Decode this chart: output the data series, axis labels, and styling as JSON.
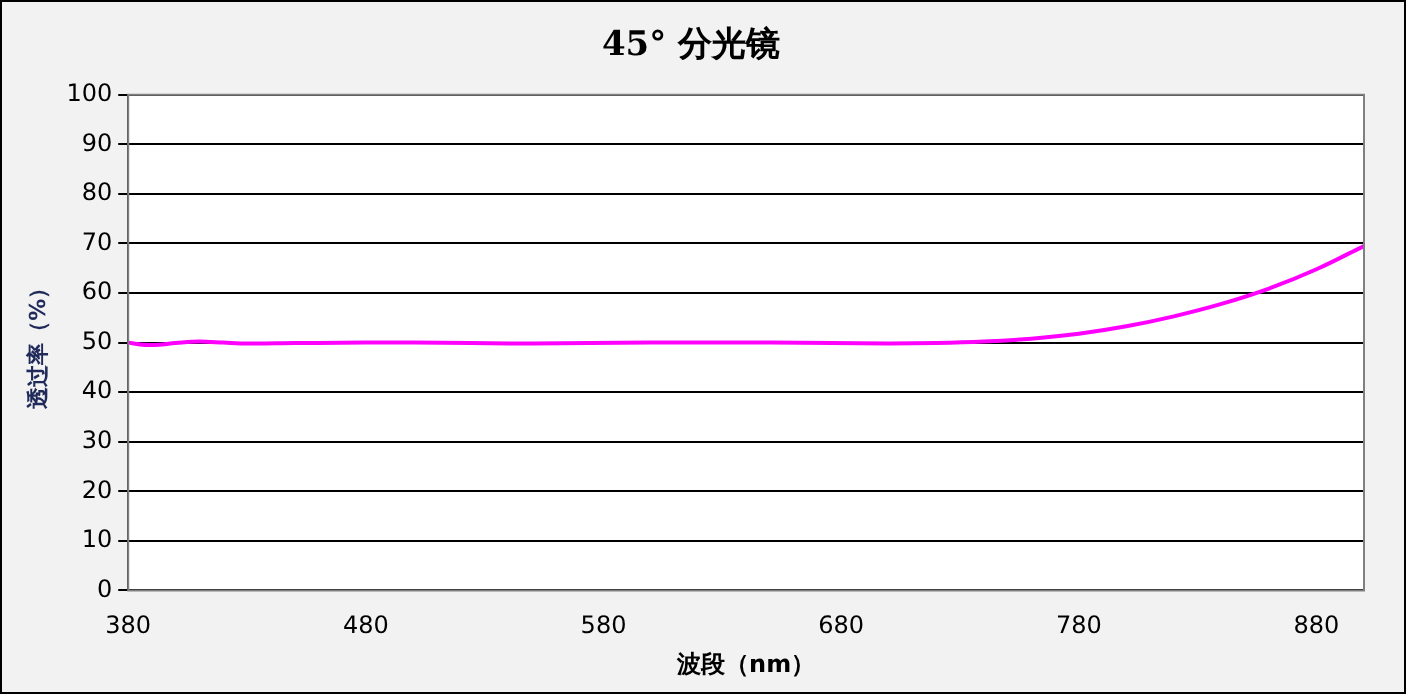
{
  "chart_data": {
    "type": "line",
    "title": "45° 分光镜",
    "xlabel": "波段（nm）",
    "ylabel": "透过率（%）",
    "x": [
      380,
      385,
      390,
      400,
      410,
      420,
      430,
      450,
      480,
      500,
      550,
      600,
      650,
      700,
      720,
      740,
      760,
      780,
      800,
      820,
      840,
      860,
      880,
      900
    ],
    "series": [
      {
        "color": "#ff00ff",
        "values": [
          50,
          49.6,
          49.5,
          49.9,
          50.2,
          50,
          49.8,
          49.9,
          50,
          50,
          49.8,
          50,
          50,
          49.8,
          49.9,
          50.2,
          50.8,
          51.8,
          53.3,
          55.3,
          57.8,
          60.9,
          64.8,
          69.5
        ]
      }
    ],
    "xlim": [
      380,
      900
    ],
    "xticks": [
      380,
      480,
      580,
      680,
      780,
      880
    ],
    "ylim": [
      0,
      100
    ],
    "yticks": [
      0,
      10,
      20,
      30,
      40,
      50,
      60,
      70,
      80,
      90,
      100
    ],
    "grid": "y",
    "legend": false,
    "marker": "none",
    "line_style": "solid"
  }
}
